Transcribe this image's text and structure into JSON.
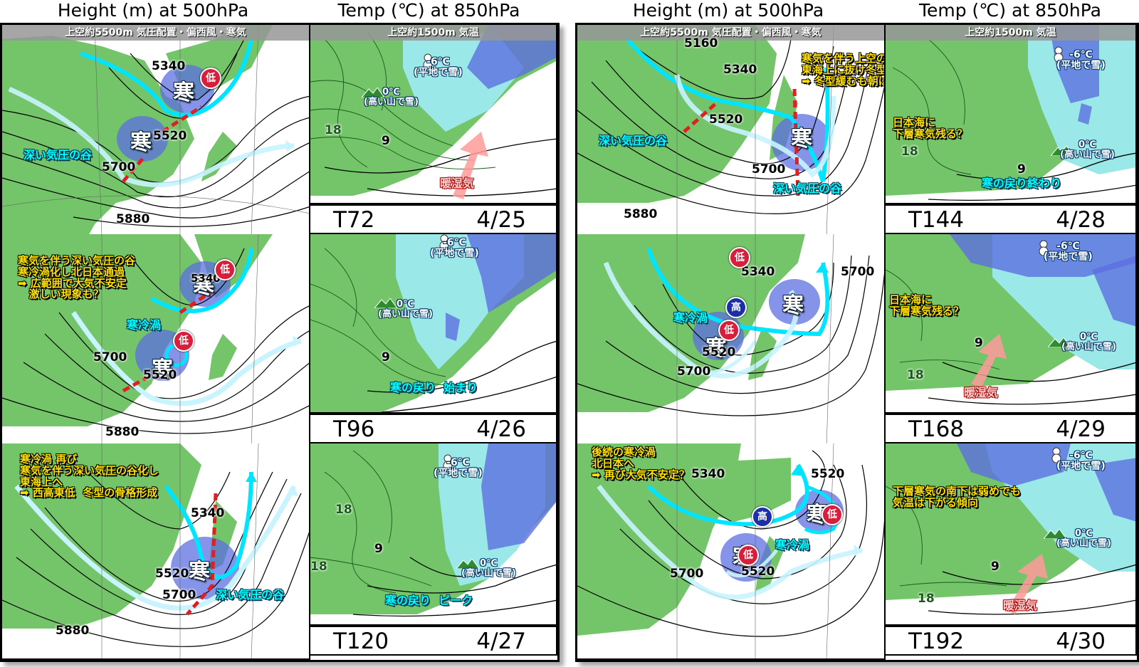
{
  "column_titles": {
    "left_height": "Height (m)  at  500hPa",
    "left_temp": "Temp (℃)  at  850hPa",
    "right_height": "Height (m)  at  500hPa",
    "right_temp": "Temp (℃)  at  850hPa"
  },
  "headers": {
    "height": "上空約5500m 気圧配置・偏西風・寒気",
    "temp": "上空約1500m 気温"
  },
  "common": {
    "kan": "寒",
    "low": "低",
    "high": "高",
    "minus6": "-6℃",
    "minus6_note": "(平地で雪)",
    "zero": "0℃",
    "zero_note": "(高い山で雪)",
    "warm": "暖湿気"
  },
  "panels": [
    {
      "step": "T72",
      "date": "4/25",
      "height_annotations": {
        "trough": "深い気圧の谷"
      },
      "height_contours": {
        "c5340": "5340",
        "c5520": "5520",
        "c5700": "5700",
        "c5880": "5880"
      },
      "temp_annotations": {},
      "temp_contours": {
        "c18": "18",
        "c9": "9"
      }
    },
    {
      "step": "T96",
      "date": "4/26",
      "height_annotations": {
        "main": "寒気を伴う深い気圧の谷\n寒冷渦化し北日本通過\n➡ 広範囲で大気不安定\n   激しい現象も？",
        "vortex": "寒冷渦"
      },
      "height_contours": {
        "c5340": "5340",
        "c5520": "5520",
        "c5700": "5700",
        "c5880": "5880"
      },
      "temp_annotations": {
        "cold_return": "寒の戻り  始まり"
      },
      "temp_contours": {
        "c9": "9"
      }
    },
    {
      "step": "T120",
      "date": "4/27",
      "height_annotations": {
        "main": "寒冷渦 再び\n寒気を伴う深い気圧の谷化し\n東海上へ\n➡ 西高東低  冬型の骨格形成",
        "trough": "深い気圧の谷"
      },
      "height_contours": {
        "c5340": "5340",
        "c5520": "5520",
        "c5700": "5700",
        "c5880": "5880"
      },
      "temp_annotations": {
        "cold_return": "寒の戻り  ピーク"
      },
      "temp_contours": {
        "c18a": "18",
        "c18b": "18",
        "c9": "9"
      }
    },
    {
      "step": "T144",
      "date": "4/28",
      "height_annotations": {
        "main": "寒気を伴う上空の気圧の谷\n東海上に抜け冬型の骨格解消へ\n➡ 冬型緩むも朝は放射冷却",
        "trough_w": "深い気圧の谷",
        "trough_e": "深い気圧の谷"
      },
      "height_contours": {
        "c5160": "5160",
        "c5340": "5340",
        "c5520": "5520",
        "c5700": "5700",
        "c5880": "5880"
      },
      "temp_annotations": {
        "sea": "日本海に\n下層寒気残る？",
        "cold_end": "寒の戻り終わり"
      },
      "temp_contours": {
        "c18": "18",
        "c9": "9"
      }
    },
    {
      "step": "T168",
      "date": "4/29",
      "height_annotations": {
        "vortex": "寒冷渦"
      },
      "height_contours": {
        "c5340": "5340",
        "c5520": "5520",
        "c5700a": "5700",
        "c5700b": "5700"
      },
      "temp_annotations": {
        "sea": "日本海に\n下層寒気残る？"
      },
      "temp_contours": {
        "c18": "18",
        "c9": "9"
      }
    },
    {
      "step": "T192",
      "date": "4/30",
      "height_annotations": {
        "main": "後続の寒冷渦\n北日本へ\n➡ 再び大気不安定？",
        "vortex": "寒冷渦"
      },
      "height_contours": {
        "c5340": "5340",
        "c5520a": "5520",
        "c5520b": "5520",
        "c5700": "5700"
      },
      "temp_annotations": {
        "trend": "下層寒気の南下は弱めでも\n気温は下がる傾向"
      },
      "temp_contours": {
        "c18": "18",
        "c9": "9"
      }
    }
  ],
  "colors": {
    "land": "#74c46a",
    "sea": "#ffffff",
    "cold_zone": "#5c6fe0",
    "snow_zone": "#9be8e8",
    "jet": "#00e5ff",
    "trough_line": "#e02020"
  }
}
